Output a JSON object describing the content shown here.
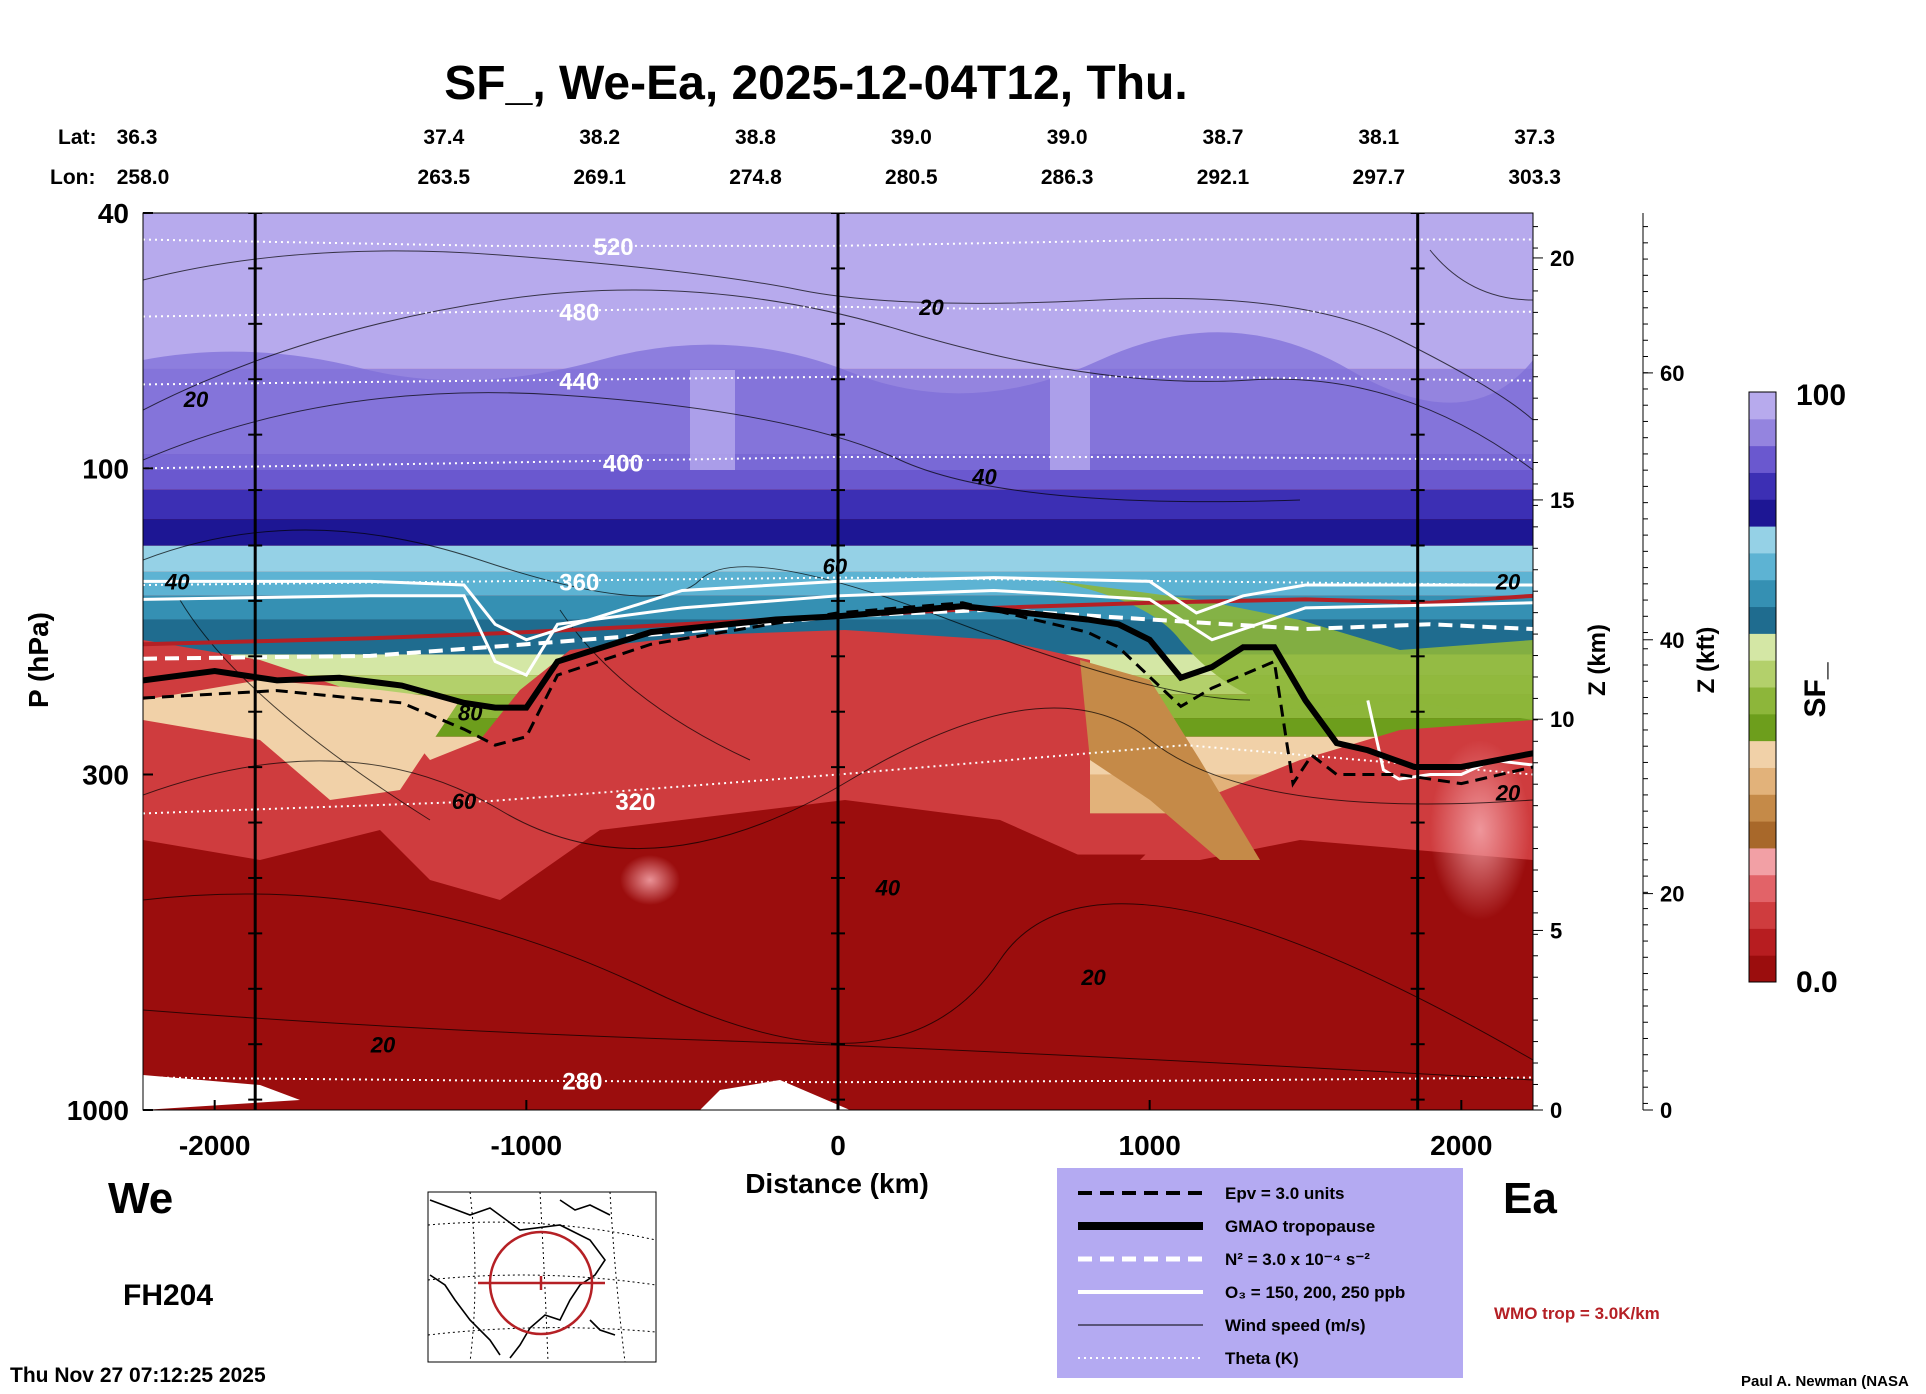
{
  "chart_data": {
    "type": "heatmap",
    "title": "SF_, We-Ea, 2025-12-04T12, Thu.",
    "xlabel": "Distance (km)",
    "ylabel": "P (hPa)",
    "z_axis_label": "Z (km)",
    "kft_axis_label": "Z (kft)",
    "colorbar_label": "SF_",
    "colorbar_range": {
      "min_label": "0.0",
      "max_label": "100",
      "min": 0,
      "max": 100
    },
    "colorbar_colors": [
      "#9b0d0d",
      "#b71d20",
      "#cf3c3e",
      "#e26368",
      "#f2a0a5",
      "#a8682a",
      "#c58a48",
      "#e2b27a",
      "#f1d1a8",
      "#6d9e1c",
      "#8db63a",
      "#b3d06b",
      "#d4e7a5",
      "#1f6c8f",
      "#3590b3",
      "#5db3d3",
      "#95d1e6",
      "#1d1694",
      "#3c2fb4",
      "#6a58cf",
      "#9484df",
      "#b7aaed"
    ],
    "xlim": [
      -2230,
      2230
    ],
    "x_ticks": [
      -2000,
      -1000,
      0,
      1000,
      2000
    ],
    "x_tick_labels": [
      "-2000",
      "-1000",
      "0",
      "1000",
      "2000"
    ],
    "ylim": [
      1000,
      40
    ],
    "y_scale": "log",
    "y_ticks": [
      40,
      100,
      300,
      1000
    ],
    "y_tick_labels": [
      "40",
      "100",
      "300",
      "1000"
    ],
    "z_km_ticks": [
      {
        "p": 47,
        "label": "20"
      },
      {
        "p": 112,
        "label": "15"
      },
      {
        "p": 246,
        "label": "10"
      },
      {
        "p": 525,
        "label": "5"
      },
      {
        "p": 1000,
        "label": "0"
      }
    ],
    "z_kft_ticks": [
      {
        "p": 71,
        "label": "60"
      },
      {
        "p": 185,
        "label": "40"
      },
      {
        "p": 460,
        "label": "20"
      },
      {
        "p": 1000,
        "label": "0"
      }
    ],
    "lat_label": "Lat:",
    "lon_label": "Lon:",
    "position_x": [
      -2230,
      -1730,
      -1230,
      -730,
      -230,
      270,
      770,
      1270,
      1770
    ],
    "lat": [
      "36.3",
      "37.4",
      "38.2",
      "38.8",
      "39.0",
      "39.0",
      "38.7",
      "38.1",
      "37.3"
    ],
    "lon": [
      "258.0",
      "263.5",
      "269.1",
      "274.8",
      "280.5",
      "286.3",
      "292.1",
      "297.7",
      "303.3"
    ],
    "vertical_lines_x": [
      -1870,
      0,
      1860
    ],
    "tropopause": {
      "x": [
        -2230,
        -2000,
        -1800,
        -1600,
        -1400,
        -1200,
        -1100,
        -1000,
        -900,
        -600,
        -200,
        0,
        400,
        800,
        900,
        1000,
        1100,
        1200,
        1300,
        1400,
        1500,
        1600,
        1700,
        1850,
        2000,
        2230
      ],
      "p": [
        214,
        207,
        214,
        212,
        218,
        232,
        236,
        236,
        200,
        180,
        172,
        170,
        164,
        172,
        175,
        185,
        212,
        204,
        190,
        190,
        230,
        268,
        275,
        292,
        292,
        278
      ]
    },
    "epv_line": {
      "x": [
        -2230,
        -1800,
        -1400,
        -1200,
        -1100,
        -1000,
        -900,
        -600,
        0,
        400,
        800,
        900,
        1100,
        1200,
        1400,
        1460,
        1520,
        1600,
        1800,
        2000,
        2230
      ],
      "p": [
        228,
        222,
        232,
        255,
        270,
        262,
        210,
        188,
        168,
        162,
        180,
        190,
        235,
        220,
        200,
        310,
        280,
        300,
        300,
        310,
        292
      ]
    },
    "n2_line": {
      "x": [
        -2230,
        -1500,
        -1000,
        -500,
        0,
        500,
        1000,
        1500,
        1900,
        2230
      ],
      "p": [
        198,
        196,
        188,
        180,
        170,
        166,
        172,
        178,
        175,
        178
      ]
    },
    "wmo_trop": {
      "x": [
        -2230,
        -1500,
        -1000,
        -500,
        0,
        500,
        1000,
        1500,
        1900,
        2230
      ],
      "p": [
        188,
        184,
        180,
        175,
        170,
        165,
        162,
        160,
        162,
        158
      ]
    },
    "ozone_lines": [
      {
        "x": [
          -2230,
          -1500,
          -1200,
          -1100,
          -1000,
          -900,
          -500,
          0,
          500,
          1000,
          1200,
          1500,
          2230
        ],
        "p": [
          160,
          158,
          158,
          200,
          210,
          175,
          165,
          158,
          155,
          160,
          185,
          165,
          162
        ]
      },
      {
        "x": [
          -2230,
          -1500,
          -1200,
          -1100,
          -1000,
          -500,
          0,
          500,
          1000,
          1150,
          1300,
          1500,
          2230
        ],
        "p": [
          150,
          150,
          152,
          175,
          185,
          155,
          150,
          148,
          150,
          168,
          158,
          152,
          152
        ]
      },
      {
        "x": [
          1700,
          1750,
          1800,
          1900,
          2000,
          2100,
          2230
        ],
        "p": [
          230,
          295,
          305,
          300,
          300,
          285,
          290
        ]
      }
    ],
    "theta_lines": [
      {
        "value": 520,
        "label": "520",
        "p": [
          44,
          45,
          45,
          44,
          44
        ],
        "label_x": -720
      },
      {
        "value": 480,
        "label": "480",
        "p": [
          58,
          57,
          56,
          57,
          57
        ],
        "label_x": -830
      },
      {
        "value": 440,
        "label": "440",
        "p": [
          74,
          73,
          72,
          72,
          73
        ],
        "label_x": -830
      },
      {
        "value": 400,
        "label": "400",
        "p": [
          100,
          98,
          96,
          96,
          97
        ],
        "label_x": -690
      },
      {
        "value": 360,
        "label": "360",
        "p": [
          152,
          150,
          148,
          150,
          152
        ],
        "label_x": -830
      },
      {
        "value": 320,
        "label": "320",
        "p": [
          345,
          330,
          300,
          270,
          300
        ],
        "label_x": -650
      },
      {
        "value": 280,
        "label": "280",
        "p": [
          890,
          900,
          905,
          900,
          890
        ],
        "label_x": -820
      }
    ],
    "wind_labels": [
      {
        "x": -2060,
        "p": 78,
        "label": "20"
      },
      {
        "x": -2120,
        "p": 150,
        "label": "40"
      },
      {
        "x": 300,
        "p": 56,
        "label": "20"
      },
      {
        "x": 470,
        "p": 103,
        "label": "40"
      },
      {
        "x": -10,
        "p": 142,
        "label": "60"
      },
      {
        "x": -1180,
        "p": 240,
        "label": "80"
      },
      {
        "x": -1200,
        "p": 330,
        "label": "60"
      },
      {
        "x": 160,
        "p": 450,
        "label": "40"
      },
      {
        "x": -1460,
        "p": 790,
        "label": "20"
      },
      {
        "x": 820,
        "p": 620,
        "label": "20"
      },
      {
        "x": 2150,
        "p": 150,
        "label": "20"
      },
      {
        "x": 2150,
        "p": 320,
        "label": "20"
      }
    ],
    "legend_entries": [
      "Epv = 3.0 units",
      "GMAO tropopause",
      "N² = 3.0 x 10⁻⁴ s⁻²",
      "O₃ = 150, 200, 250 ppb",
      "Wind speed (m/s)",
      "Theta (K)"
    ],
    "legend_bg": "#b4aaf2",
    "wmo_label": "WMO trop = 3.0K/km",
    "wmo_color": "#b52025",
    "left_dir": "We",
    "right_dir": "Ea",
    "forecast_hour": "FH204",
    "timestamp": "Thu Nov 27 07:12:25 2025",
    "credit": "Paul A. Newman (NASA"
  }
}
